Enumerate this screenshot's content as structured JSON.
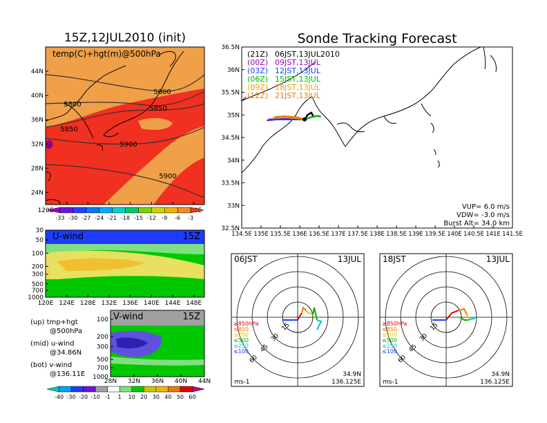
{
  "left_map": {
    "title": "15Z,12JUL2010 (init)",
    "label": "temp(C)+hgt(m)@500hPa",
    "lat_ticks": [
      "44N",
      "40N",
      "36N",
      "32N",
      "28N",
      "24N"
    ],
    "lon_ticks": [
      "120E",
      "124E",
      "128E",
      "132E",
      "136E",
      "140E",
      "144E",
      "148E"
    ],
    "contour_labels": [
      "5800",
      "5800",
      "5850",
      "5850",
      "5900",
      "5900"
    ]
  },
  "temp_colorbar": {
    "labels": [
      "-33",
      "-30",
      "-27",
      "-24",
      "-21",
      "-18",
      "-15",
      "-12",
      "-9",
      "-6",
      "-3"
    ]
  },
  "uwind": {
    "label": "U-wind",
    "time": "15Z",
    "p_ticks": [
      "30",
      "50",
      "100",
      "200",
      "300",
      "500",
      "700",
      "1000"
    ],
    "lon_ticks": [
      "120E",
      "124E",
      "128E",
      "132E",
      "136E",
      "140E",
      "144E",
      "148E"
    ]
  },
  "vwind": {
    "label": "V-wind",
    "time": "15Z",
    "p_ticks": [
      "100",
      "200",
      "300",
      "500",
      "700",
      "1000"
    ],
    "lat_ticks": [
      "28N",
      "32N",
      "36N",
      "40N",
      "44N"
    ]
  },
  "legend_text": {
    "up": "(up) tmp+hgt",
    "up2": "@500hPa",
    "mid": "(mid) u-wind",
    "mid2": "@34.86N",
    "bot": "(bot) v-wind",
    "bot2": "@136.11E"
  },
  "wind_colorbar": {
    "labels": [
      "-40",
      "-30",
      "-20",
      "-10",
      "-1",
      "1",
      "10",
      "20",
      "30",
      "40",
      "50",
      "60"
    ]
  },
  "track": {
    "title": "Sonde Tracking Forecast",
    "lat_ticks": [
      "36.5N",
      "36N",
      "35.5N",
      "35N",
      "34.5N",
      "34N",
      "33.5N",
      "33N",
      "32.5N"
    ],
    "lon_ticks": [
      "134.5E",
      "135E",
      "135.5E",
      "136E",
      "136.5E",
      "137E",
      "137.5E",
      "138E",
      "138.5E",
      "139E",
      "139.5E",
      "140E",
      "140.5E",
      "141E",
      "141.5E"
    ],
    "legend": [
      {
        "code": "(21Z)",
        "time": "06JST,13JUL2010",
        "color": "#000000"
      },
      {
        "code": "(00Z)",
        "time": "09JST,13JUL",
        "color": "#9a00c8"
      },
      {
        "code": "(03Z)",
        "time": "12JST,13JUL",
        "color": "#1e3cff"
      },
      {
        "code": "(06Z)",
        "time": "15JST,13JUL",
        "color": "#00b400"
      },
      {
        "code": "(09Z)",
        "time": "18JST,13JUL",
        "color": "#e8a000"
      },
      {
        "code": "(12Z)",
        "time": "21JST,13JUL",
        "color": "#f07800"
      }
    ],
    "vup": "VUP= 6.0 m/s",
    "vdw": "VDW= -3.0 m/s",
    "burst": "Burst Alt= 34.0 km"
  },
  "hodo_left": {
    "time": "06JST",
    "date": "13JUL",
    "unit": "ms-1",
    "lat": "34.9N",
    "lon": "136.125E",
    "ring_labels": [
      "15",
      "30",
      "45",
      "60"
    ],
    "levels": [
      {
        "label": "≥850hPa",
        "color": "#e00000"
      },
      {
        "label": "≤850",
        "color": "#f07800"
      },
      {
        "label": "≤700",
        "color": "#e8c800"
      },
      {
        "label": "≤500",
        "color": "#00b400"
      },
      {
        "label": "≤250",
        "color": "#00c8c8"
      },
      {
        "label": "≤100",
        "color": "#1e3cff"
      }
    ]
  },
  "hodo_right": {
    "time": "18JST",
    "date": "13JUL",
    "unit": "ms-1",
    "lat": "34.9N",
    "lon": "136.125E",
    "ring_labels": [
      "15",
      "30",
      "45",
      "60"
    ],
    "levels": [
      {
        "label": "≥850hPa",
        "color": "#e00000"
      },
      {
        "label": "≤850",
        "color": "#f07800"
      },
      {
        "label": "≤700",
        "color": "#e8c800"
      },
      {
        "label": "≤500",
        "color": "#00b400"
      },
      {
        "label": "≤250",
        "color": "#00c8c8"
      },
      {
        "label": "≤100",
        "color": "#1e3cff"
      }
    ]
  },
  "chart_data": [
    {
      "type": "heatmap",
      "title": "15Z,12JUL2010 (init)",
      "field": "temp(C)+hgt(m)@500hPa",
      "xlim_deg_E": [
        120,
        150
      ],
      "ylim_deg_N": [
        22,
        48
      ],
      "temp_levels": [
        -33,
        -30,
        -27,
        -24,
        -21,
        -18,
        -15,
        -12,
        -9,
        -6,
        -3
      ],
      "height_contours_m": [
        5800,
        5850,
        5900
      ],
      "temp_range_shown_C": [
        -9,
        -3
      ]
    },
    {
      "type": "heatmap",
      "title": "U-wind 15Z",
      "xlim_deg_E": [
        120,
        150
      ],
      "pressure_hPa": [
        30,
        50,
        100,
        200,
        300,
        500,
        700,
        1000
      ],
      "color_levels": [
        -40,
        -30,
        -20,
        -10,
        -1,
        1,
        10,
        20,
        30,
        40,
        50,
        60
      ]
    },
    {
      "type": "heatmap",
      "title": "V-wind 15Z",
      "xlim_deg_N": [
        28,
        44
      ],
      "pressure_hPa": [
        100,
        200,
        300,
        500,
        700,
        1000
      ],
      "color_levels": [
        -40,
        -30,
        -20,
        -10,
        -1,
        1,
        10,
        20,
        30,
        40,
        50,
        60
      ]
    },
    {
      "type": "line",
      "title": "Sonde Tracking Forecast",
      "xlim_deg_E": [
        134.5,
        141.5
      ],
      "ylim_deg_N": [
        32.5,
        36.5
      ],
      "launch_point": [
        136.125,
        34.9
      ],
      "series": [
        {
          "name": "(21Z) 06JST,13JUL2010",
          "color": "#000000",
          "x": [
            136.13,
            136.2,
            136.3,
            136.35
          ],
          "y": [
            34.9,
            35.0,
            35.05,
            34.97
          ]
        },
        {
          "name": "(00Z) 09JST,13JUL",
          "color": "#9a00c8",
          "x": [
            136.13,
            135.8,
            135.4,
            135.15
          ],
          "y": [
            34.9,
            34.92,
            34.9,
            34.88
          ]
        },
        {
          "name": "(03Z) 12JST,13JUL",
          "color": "#1e3cff",
          "x": [
            136.13,
            135.8,
            135.45,
            135.2
          ],
          "y": [
            34.9,
            34.9,
            34.9,
            34.9
          ]
        },
        {
          "name": "(06Z) 15JST,13JUL",
          "color": "#00b400",
          "x": [
            136.13,
            136.3,
            136.45,
            136.55
          ],
          "y": [
            34.9,
            34.95,
            34.98,
            34.96
          ]
        },
        {
          "name": "(09Z) 18JST,13JUL",
          "color": "#e8a000",
          "x": [
            136.13,
            135.9,
            135.6,
            135.3
          ],
          "y": [
            34.9,
            34.93,
            34.95,
            34.93
          ]
        },
        {
          "name": "(12Z) 21JST,13JUL",
          "color": "#f07800",
          "x": [
            136.13,
            135.9,
            135.6,
            135.35
          ],
          "y": [
            34.9,
            34.95,
            34.97,
            34.95
          ]
        }
      ]
    }
  ]
}
